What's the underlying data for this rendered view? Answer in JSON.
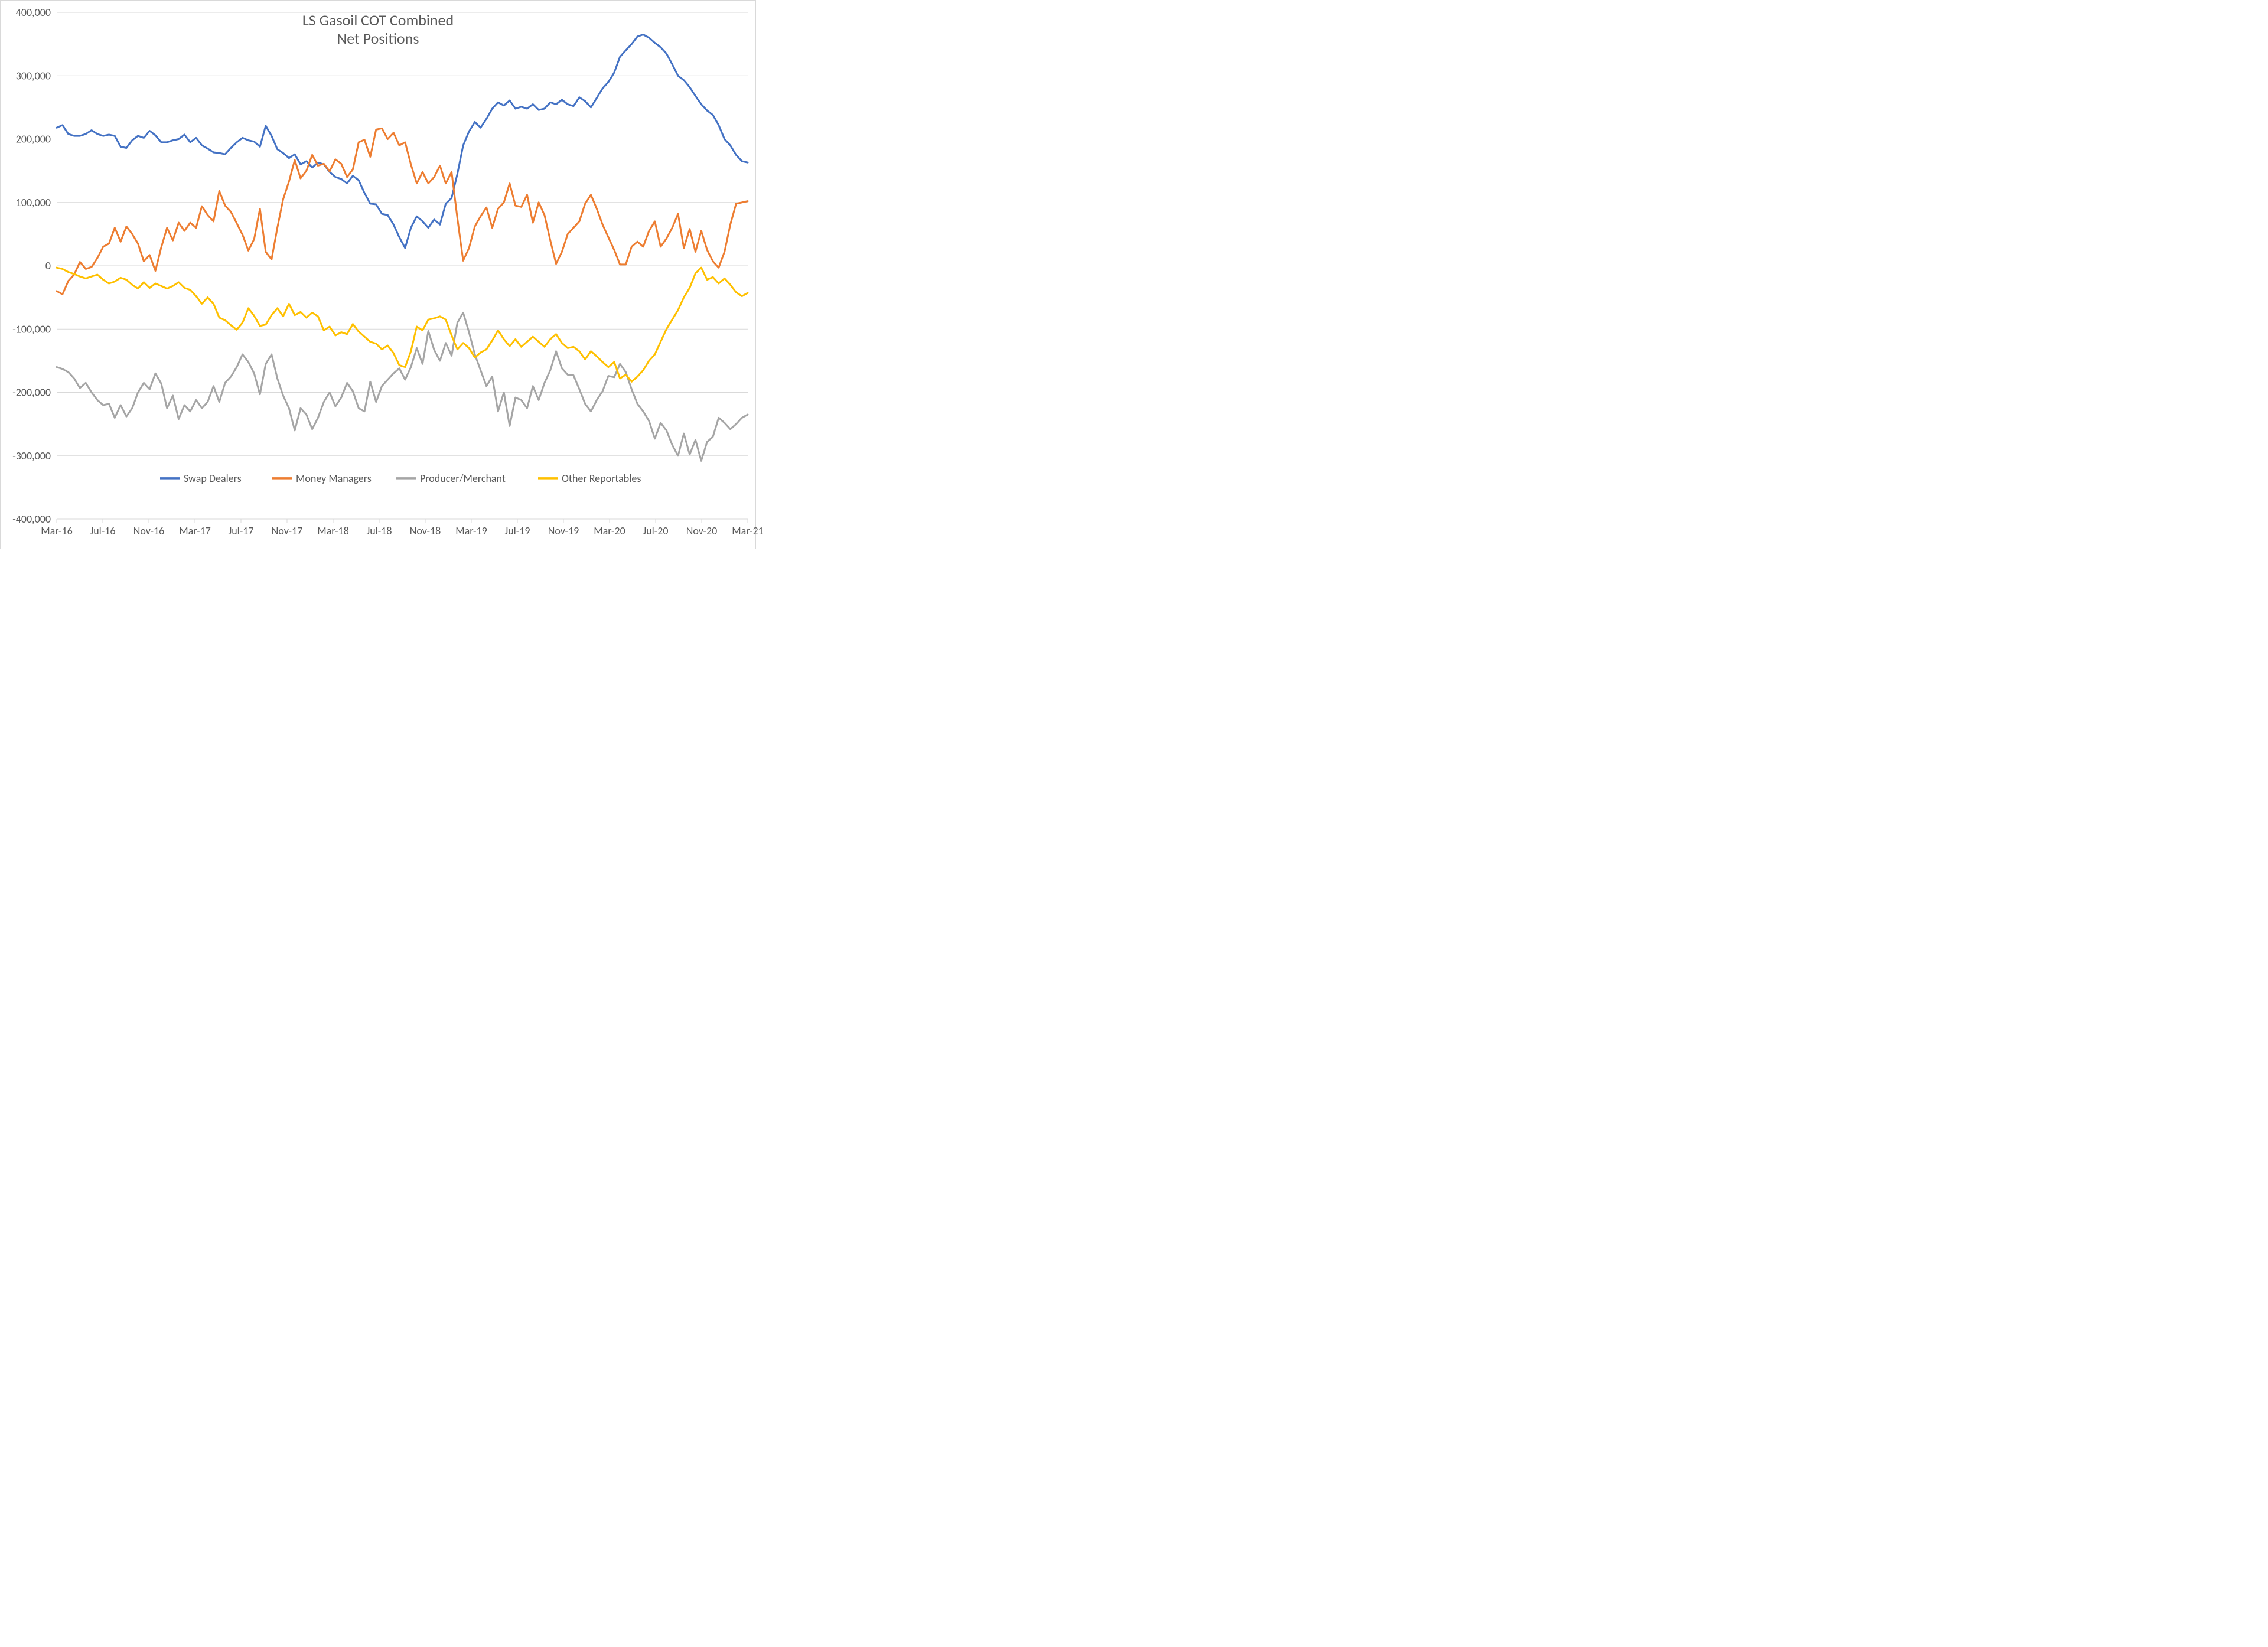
{
  "chart": {
    "type": "line",
    "title_line1": "LS Gasoil COT Combined",
    "title_line2": "Net Positions",
    "title_fontsize": 26,
    "title_color": "#595959",
    "background_color": "#ffffff",
    "border_color": "#d9d9d9",
    "grid_color": "#d9d9d9",
    "axis_label_color": "#595959",
    "axis_label_fontsize": 18,
    "line_width": 3,
    "ylim": [
      -400000,
      400000
    ],
    "ytick_step": 100000,
    "ytick_labels": [
      "-400,000",
      "-300,000",
      "-200,000",
      "-100,000",
      "0",
      "100,000",
      "200,000",
      "300,000",
      "400,000"
    ],
    "x_categories": [
      "Mar-16",
      "Jul-16",
      "Nov-16",
      "Mar-17",
      "Jul-17",
      "Nov-17",
      "Mar-18",
      "Jul-18",
      "Nov-18",
      "Mar-19",
      "Jul-19",
      "Nov-19",
      "Mar-20",
      "Jul-20",
      "Nov-20",
      "Mar-21"
    ],
    "legend": {
      "items": [
        {
          "label": "Swap Dealers",
          "color": "#4472c4"
        },
        {
          "label": "Money Managers",
          "color": "#ed7d31"
        },
        {
          "label": "Producer/Merchant",
          "color": "#a5a5a5"
        },
        {
          "label": "Other Reportables",
          "color": "#ffc000"
        }
      ],
      "fontsize": 18,
      "color": "#595959"
    },
    "series": {
      "swap_dealers": {
        "color": "#4472c4",
        "values": [
          218000,
          222000,
          208000,
          205000,
          205000,
          208000,
          214000,
          208000,
          205000,
          207000,
          205000,
          188000,
          186000,
          198000,
          205000,
          202000,
          213000,
          206000,
          195000,
          195000,
          198000,
          200000,
          207000,
          195000,
          202000,
          190000,
          185000,
          179000,
          178000,
          176000,
          186000,
          195000,
          202000,
          198000,
          196000,
          188000,
          221000,
          205000,
          184000,
          178000,
          170000,
          176000,
          160000,
          165000,
          155000,
          163000,
          160000,
          148000,
          140000,
          137000,
          130000,
          142000,
          135000,
          115000,
          98000,
          97000,
          82000,
          80000,
          65000,
          45000,
          28000,
          60000,
          78000,
          70000,
          60000,
          73000,
          65000,
          98000,
          107000,
          145000,
          190000,
          212000,
          227000,
          218000,
          232000,
          248000,
          258000,
          253000,
          261000,
          248000,
          251000,
          248000,
          255000,
          246000,
          248000,
          258000,
          255000,
          262000,
          255000,
          252000,
          266000,
          260000,
          250000,
          265000,
          280000,
          290000,
          305000,
          330000,
          340000,
          350000,
          362000,
          365000,
          360000,
          352000,
          345000,
          335000,
          318000,
          300000,
          293000,
          282000,
          268000,
          255000,
          245000,
          238000,
          222000,
          200000,
          190000,
          175000,
          165000,
          163000
        ]
      },
      "money_managers": {
        "color": "#ed7d31",
        "values": [
          -40000,
          -45000,
          -24000,
          -14000,
          6000,
          -5000,
          -2000,
          12000,
          30000,
          35000,
          60000,
          38000,
          62000,
          50000,
          35000,
          7000,
          17000,
          -8000,
          29000,
          60000,
          40000,
          68000,
          55000,
          68000,
          60000,
          94000,
          80000,
          70000,
          118000,
          95000,
          85000,
          67000,
          49000,
          24000,
          42000,
          90000,
          22000,
          10000,
          60000,
          105000,
          133000,
          167000,
          138000,
          150000,
          175000,
          158000,
          161000,
          149000,
          168000,
          161000,
          140000,
          152000,
          195000,
          199000,
          172000,
          215000,
          217000,
          200000,
          210000,
          190000,
          195000,
          160000,
          130000,
          148000,
          130000,
          140000,
          158000,
          130000,
          148000,
          75000,
          8000,
          28000,
          62000,
          78000,
          92000,
          60000,
          90000,
          100000,
          130000,
          95000,
          93000,
          112000,
          68000,
          100000,
          80000,
          40000,
          3000,
          22000,
          50000,
          60000,
          70000,
          98000,
          112000,
          90000,
          65000,
          45000,
          25000,
          2000,
          2000,
          30000,
          38000,
          30000,
          55000,
          70000,
          30000,
          43000,
          60000,
          82000,
          28000,
          58000,
          22000,
          55000,
          25000,
          7000,
          -3000,
          22000,
          65000,
          98000,
          100000,
          102000
        ]
      },
      "producer_merchant": {
        "color": "#a5a5a5",
        "values": [
          -160000,
          -163000,
          -168000,
          -178000,
          -193000,
          -185000,
          -200000,
          -212000,
          -220000,
          -218000,
          -240000,
          -220000,
          -238000,
          -225000,
          -200000,
          -185000,
          -195000,
          -170000,
          -186000,
          -225000,
          -205000,
          -242000,
          -220000,
          -230000,
          -212000,
          -225000,
          -215000,
          -190000,
          -215000,
          -185000,
          -175000,
          -160000,
          -140000,
          -152000,
          -170000,
          -203000,
          -155000,
          -140000,
          -178000,
          -205000,
          -225000,
          -260000,
          -225000,
          -235000,
          -258000,
          -240000,
          -215000,
          -200000,
          -222000,
          -208000,
          -185000,
          -198000,
          -225000,
          -230000,
          -183000,
          -215000,
          -190000,
          -180000,
          -170000,
          -162000,
          -180000,
          -160000,
          -130000,
          -155000,
          -103000,
          -133000,
          -150000,
          -122000,
          -142000,
          -90000,
          -74000,
          -105000,
          -140000,
          -165000,
          -190000,
          -175000,
          -230000,
          -200000,
          -253000,
          -208000,
          -212000,
          -225000,
          -190000,
          -212000,
          -185000,
          -165000,
          -135000,
          -162000,
          -172000,
          -173000,
          -195000,
          -218000,
          -230000,
          -212000,
          -198000,
          -174000,
          -176000,
          -155000,
          -168000,
          -195000,
          -218000,
          -230000,
          -245000,
          -273000,
          -248000,
          -260000,
          -283000,
          -300000,
          -265000,
          -298000,
          -275000,
          -308000,
          -278000,
          -270000,
          -240000,
          -248000,
          -258000,
          -250000,
          -240000,
          -235000
        ]
      },
      "other_reportables": {
        "color": "#ffc000",
        "values": [
          -3000,
          -5000,
          -10000,
          -13000,
          -17000,
          -20000,
          -17000,
          -14000,
          -22000,
          -28000,
          -25000,
          -19000,
          -22000,
          -30000,
          -36000,
          -26000,
          -35000,
          -28000,
          -32000,
          -36000,
          -32000,
          -26000,
          -35000,
          -38000,
          -48000,
          -60000,
          -50000,
          -60000,
          -82000,
          -86000,
          -94000,
          -101000,
          -90000,
          -67000,
          -79000,
          -95000,
          -93000,
          -78000,
          -67000,
          -80000,
          -60000,
          -78000,
          -73000,
          -82000,
          -74000,
          -80000,
          -102000,
          -96000,
          -110000,
          -105000,
          -108000,
          -92000,
          -104000,
          -112000,
          -120000,
          -123000,
          -132000,
          -126000,
          -138000,
          -157000,
          -160000,
          -135000,
          -96000,
          -102000,
          -85000,
          -83000,
          -80000,
          -85000,
          -110000,
          -132000,
          -122000,
          -130000,
          -145000,
          -137000,
          -132000,
          -118000,
          -102000,
          -116000,
          -127000,
          -116000,
          -128000,
          -120000,
          -112000,
          -120000,
          -128000,
          -116000,
          -108000,
          -122000,
          -130000,
          -128000,
          -135000,
          -148000,
          -135000,
          -143000,
          -152000,
          -160000,
          -152000,
          -178000,
          -172000,
          -183000,
          -175000,
          -165000,
          -150000,
          -140000,
          -120000,
          -100000,
          -85000,
          -70000,
          -50000,
          -35000,
          -12000,
          -3000,
          -22000,
          -18000,
          -28000,
          -20000,
          -30000,
          -42000,
          -48000,
          -43000
        ]
      }
    }
  }
}
